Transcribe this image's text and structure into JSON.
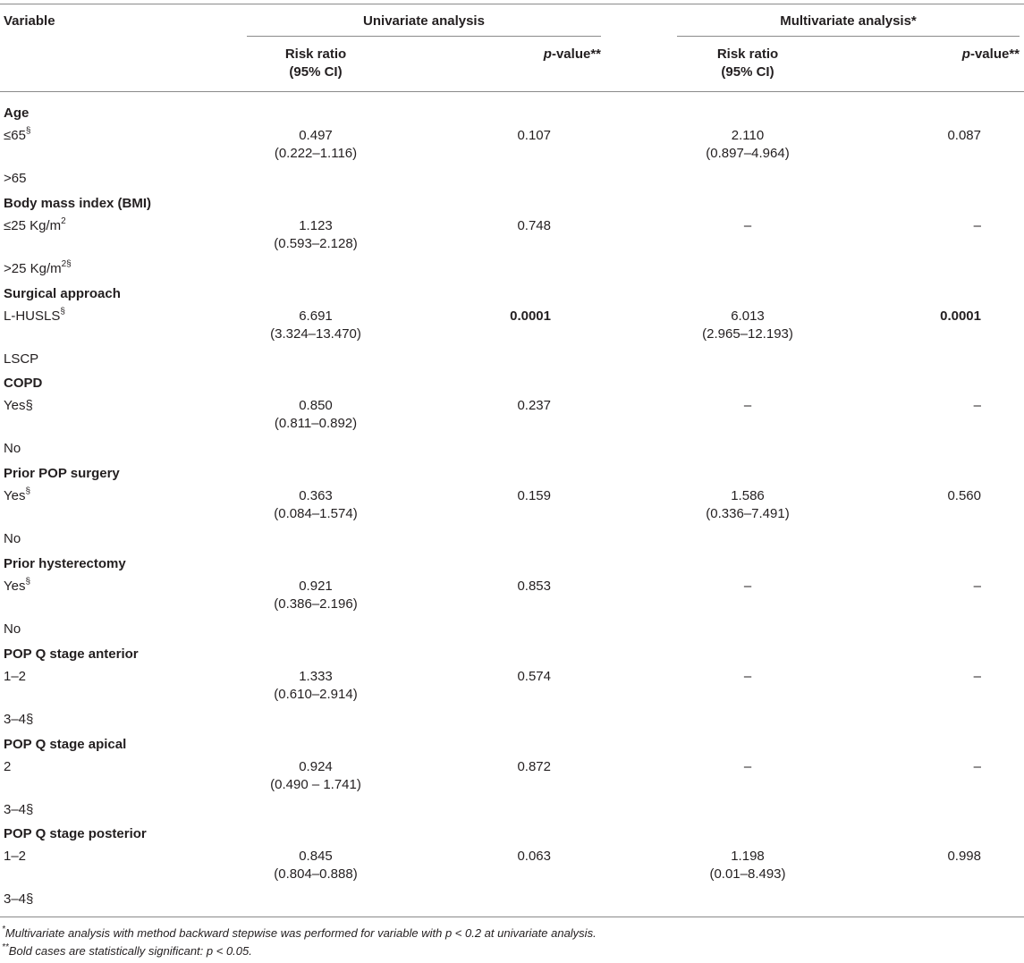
{
  "header": {
    "variable": "Variable",
    "univariate": "Univariate analysis",
    "multivariate": "Multivariate analysis*",
    "rr_line1": "Risk ratio",
    "rr_line2": "(95% CI)",
    "p_prefix": "p",
    "p_suffix": "-value**"
  },
  "groups": [
    {
      "title": "Age",
      "rows": [
        {
          "label": "≤65",
          "sup": "§",
          "uni_rr": "0.497",
          "uni_ci": "(0.222–1.116)",
          "uni_p": "0.107",
          "uni_p_bold": false,
          "multi_rr": "2.110",
          "multi_ci": "(0.897–4.964)",
          "multi_p": "0.087",
          "multi_p_bold": false
        },
        {
          "label": ">65",
          "sup": ""
        }
      ]
    },
    {
      "title": "Body mass index (BMI)",
      "rows": [
        {
          "label": "≤25 Kg/m",
          "sup": "2",
          "uni_rr": "1.123",
          "uni_ci": "(0.593–2.128)",
          "uni_p": "0.748",
          "uni_p_bold": false,
          "multi_rr": "–",
          "multi_ci": "",
          "multi_p": "–",
          "multi_p_bold": false
        },
        {
          "label": ">25 Kg/m",
          "sup": "2§"
        }
      ]
    },
    {
      "title": "Surgical approach",
      "rows": [
        {
          "label": "L-HUSLS",
          "sup": "§",
          "uni_rr": "6.691",
          "uni_ci": "(3.324–13.470)",
          "uni_p": "0.0001",
          "uni_p_bold": true,
          "multi_rr": "6.013",
          "multi_ci": "(2.965–12.193)",
          "multi_p": "0.0001",
          "multi_p_bold": true
        },
        {
          "label": "LSCP",
          "sup": ""
        }
      ]
    },
    {
      "title": "COPD",
      "rows": [
        {
          "label": "Yes§",
          "sup": "",
          "uni_rr": "0.850",
          "uni_ci": "(0.811–0.892)",
          "uni_p": "0.237",
          "uni_p_bold": false,
          "multi_rr": "–",
          "multi_ci": "",
          "multi_p": "–",
          "multi_p_bold": false
        },
        {
          "label": "No",
          "sup": ""
        }
      ]
    },
    {
      "title": "Prior POP surgery",
      "rows": [
        {
          "label": "Yes",
          "sup": "§",
          "uni_rr": "0.363",
          "uni_ci": "(0.084–1.574)",
          "uni_p": "0.159",
          "uni_p_bold": false,
          "multi_rr": "1.586",
          "multi_ci": "(0.336–7.491)",
          "multi_p": "0.560",
          "multi_p_bold": false
        },
        {
          "label": "No",
          "sup": ""
        }
      ]
    },
    {
      "title": "Prior hysterectomy",
      "rows": [
        {
          "label": "Yes",
          "sup": "§",
          "uni_rr": "0.921",
          "uni_ci": "(0.386–2.196)",
          "uni_p": "0.853",
          "uni_p_bold": false,
          "multi_rr": "–",
          "multi_ci": "",
          "multi_p": "–",
          "multi_p_bold": false
        },
        {
          "label": "No",
          "sup": ""
        }
      ]
    },
    {
      "title": "POP Q stage anterior",
      "rows": [
        {
          "label": "1–2",
          "sup": "",
          "uni_rr": "1.333",
          "uni_ci": "(0.610–2.914)",
          "uni_p": "0.574",
          "uni_p_bold": false,
          "multi_rr": "–",
          "multi_ci": "",
          "multi_p": "–",
          "multi_p_bold": false
        },
        {
          "label": "3–4§",
          "sup": ""
        }
      ]
    },
    {
      "title": "POP Q stage apical",
      "rows": [
        {
          "label": "2",
          "sup": "",
          "uni_rr": "0.924",
          "uni_ci": "(0.490 – 1.741)",
          "uni_p": "0.872",
          "uni_p_bold": false,
          "multi_rr": "–",
          "multi_ci": "",
          "multi_p": "–",
          "multi_p_bold": false
        },
        {
          "label": "3–4§",
          "sup": ""
        }
      ]
    },
    {
      "title": "POP Q stage posterior",
      "rows": [
        {
          "label": "1–2",
          "sup": "",
          "uni_rr": "0.845",
          "uni_ci": "(0.804–0.888)",
          "uni_p": "0.063",
          "uni_p_bold": false,
          "multi_rr": "1.198",
          "multi_ci": "(0.01–8.493)",
          "multi_p": "0.998",
          "multi_p_bold": false
        },
        {
          "label": "3–4§",
          "sup": ""
        }
      ]
    }
  ],
  "footnotes": [
    {
      "mark": "*",
      "text": "Multivariate analysis with method backward stepwise was performed for variable with p < 0.2 at univariate analysis."
    },
    {
      "mark": "**",
      "text": "Bold cases are statistically significant: p < 0.05."
    }
  ]
}
